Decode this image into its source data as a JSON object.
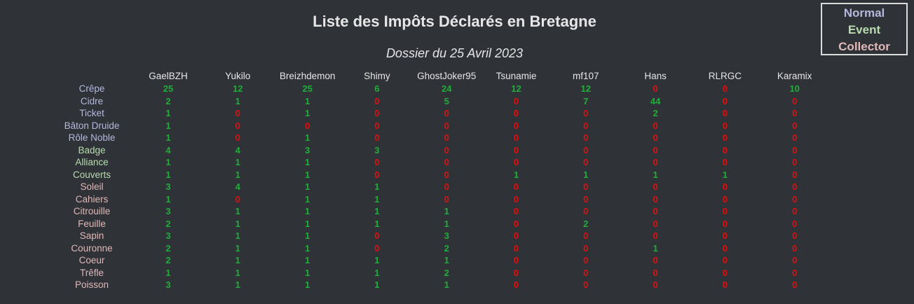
{
  "chart_data": {
    "type": "table",
    "title": "Liste des Impôts Déclarés en Bretagne",
    "subtitle": "Dossier du 25 Avril 2023",
    "legend": [
      {
        "label": "Normal",
        "color": "#b4b8dc"
      },
      {
        "label": "Event",
        "color": "#b8dcb0"
      },
      {
        "label": "Collector",
        "color": "#e0b8b8"
      }
    ],
    "colors": {
      "positive": "#1fae3a",
      "zero": "#e01010"
    },
    "columns": [
      "GaelBZH",
      "Yukilo",
      "Breizhdemon",
      "Shimy",
      "GhostJoker95",
      "Tsunamie",
      "mf107",
      "Hans",
      "RLRGC",
      "Karamix"
    ],
    "rows": [
      {
        "label": "Crêpe",
        "category": "Normal",
        "values": [
          25,
          12,
          25,
          6,
          24,
          12,
          12,
          0,
          0,
          10
        ]
      },
      {
        "label": "Cidre",
        "category": "Normal",
        "values": [
          2,
          1,
          1,
          0,
          5,
          0,
          7,
          44,
          0,
          0
        ]
      },
      {
        "label": "Ticket",
        "category": "Normal",
        "values": [
          1,
          0,
          1,
          0,
          0,
          0,
          0,
          2,
          0,
          0
        ]
      },
      {
        "label": "Bâton Druide",
        "category": "Normal",
        "values": [
          1,
          0,
          0,
          0,
          0,
          0,
          0,
          0,
          0,
          0
        ]
      },
      {
        "label": "Rôle Noble",
        "category": "Normal",
        "values": [
          1,
          0,
          1,
          0,
          0,
          0,
          0,
          0,
          0,
          0
        ]
      },
      {
        "label": "Badge",
        "category": "Event",
        "values": [
          4,
          4,
          3,
          3,
          0,
          0,
          0,
          0,
          0,
          0
        ]
      },
      {
        "label": "Alliance",
        "category": "Event",
        "values": [
          1,
          1,
          1,
          0,
          0,
          0,
          0,
          0,
          0,
          0
        ]
      },
      {
        "label": "Couverts",
        "category": "Event",
        "values": [
          1,
          1,
          1,
          0,
          0,
          1,
          1,
          1,
          1,
          0
        ]
      },
      {
        "label": "Soleil",
        "category": "Collector",
        "values": [
          3,
          4,
          1,
          1,
          0,
          0,
          0,
          0,
          0,
          0
        ]
      },
      {
        "label": "Cahiers",
        "category": "Collector",
        "values": [
          1,
          0,
          1,
          1,
          0,
          0,
          0,
          0,
          0,
          0
        ]
      },
      {
        "label": "Citrouille",
        "category": "Collector",
        "values": [
          3,
          1,
          1,
          1,
          1,
          0,
          0,
          0,
          0,
          0
        ]
      },
      {
        "label": "Feuille",
        "category": "Collector",
        "values": [
          2,
          1,
          1,
          1,
          1,
          0,
          2,
          0,
          0,
          0
        ]
      },
      {
        "label": "Sapin",
        "category": "Collector",
        "values": [
          3,
          1,
          1,
          0,
          3,
          0,
          0,
          0,
          0,
          0
        ]
      },
      {
        "label": "Couronne",
        "category": "Collector",
        "values": [
          2,
          1,
          1,
          0,
          2,
          0,
          0,
          1,
          0,
          0
        ]
      },
      {
        "label": "Coeur",
        "category": "Collector",
        "values": [
          2,
          1,
          1,
          1,
          1,
          0,
          0,
          0,
          0,
          0
        ]
      },
      {
        "label": "Trêfle",
        "category": "Collector",
        "values": [
          1,
          1,
          1,
          1,
          2,
          0,
          0,
          0,
          0,
          0
        ]
      },
      {
        "label": "Poisson",
        "category": "Collector",
        "values": [
          3,
          1,
          1,
          1,
          1,
          0,
          0,
          0,
          0,
          0
        ]
      }
    ]
  }
}
